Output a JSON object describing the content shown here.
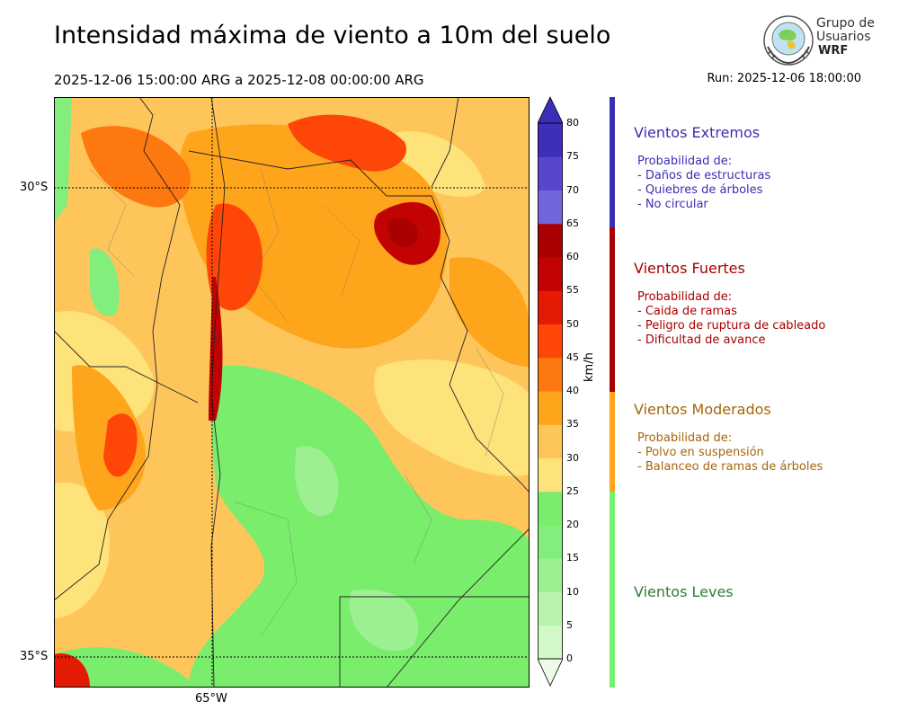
{
  "header": {
    "title": "Intensidad máxima de viento a 10m del suelo",
    "period": "2025-12-06 15:00:00 ARG  a  2025-12-08 00:00:00 ARG",
    "run": "Run: 2025-12-06 18:00:00"
  },
  "logo": {
    "line1": "Grupo de",
    "line2": "Usuarios",
    "line3": "WRF",
    "icon": "globe-logo-icon"
  },
  "map": {
    "lat_labels": [
      "30°S",
      "35°S"
    ],
    "lon_labels": [
      "65°W"
    ]
  },
  "colorbar": {
    "unit": "km/h",
    "ticks": [
      "0",
      "5",
      "10",
      "15",
      "20",
      "25",
      "30",
      "35",
      "40",
      "45",
      "50",
      "55",
      "60",
      "65",
      "70",
      "75",
      "80"
    ],
    "colors": [
      "#eefbe9",
      "#d2f8c8",
      "#b8f4ab",
      "#9cf091",
      "#84ee7c",
      "#7bed6c",
      "#fee27a",
      "#fec55b",
      "#fea51c",
      "#fe7810",
      "#fe4608",
      "#e51a05",
      "#c20303",
      "#a90101",
      "#7266dd",
      "#5747cc",
      "#3e2fb8"
    ],
    "top_color": "#3a2fb8"
  },
  "categories": [
    {
      "title": "Vientos Extremos",
      "color": "#3a2fb2",
      "lines": [
        "Probabilidad de:",
        "- Daños de estructuras",
        "- Quiebres de árboles",
        "- No circular"
      ]
    },
    {
      "title": "Vientos Fuertes",
      "color": "#a80000",
      "lines": [
        "Probabilidad de:",
        "- Caida de ramas",
        "- Peligro de ruptura de cableado",
        "- Dificultad de avance"
      ]
    },
    {
      "title": "Vientos Moderados",
      "color": "#a5660a",
      "bar_color": "#fea51c",
      "lines": [
        "Probabilidad de:",
        "- Polvo en suspensión",
        "- Balanceo de ramas de árboles"
      ]
    },
    {
      "title": "Vientos Leves",
      "color": "#2e7d32",
      "bar_color": "#77f06f",
      "lines": []
    }
  ]
}
